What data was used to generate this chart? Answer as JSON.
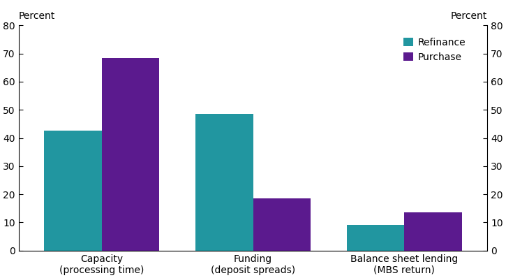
{
  "categories": [
    "Capacity\n(processing time)",
    "Funding\n(deposit spreads)",
    "Balance sheet lending\n(MBS return)"
  ],
  "refinance_values": [
    42.5,
    48.5,
    9.0
  ],
  "purchase_values": [
    68.5,
    18.5,
    13.5
  ],
  "refinance_color": "#2196a0",
  "purchase_color": "#5b1a8e",
  "ylabel_left": "Percent",
  "ylabel_right": "Percent",
  "ylim": [
    0,
    80
  ],
  "yticks": [
    0,
    10,
    20,
    30,
    40,
    50,
    60,
    70,
    80
  ],
  "legend_labels": [
    "Refinance",
    "Purchase"
  ],
  "bar_width": 0.38
}
